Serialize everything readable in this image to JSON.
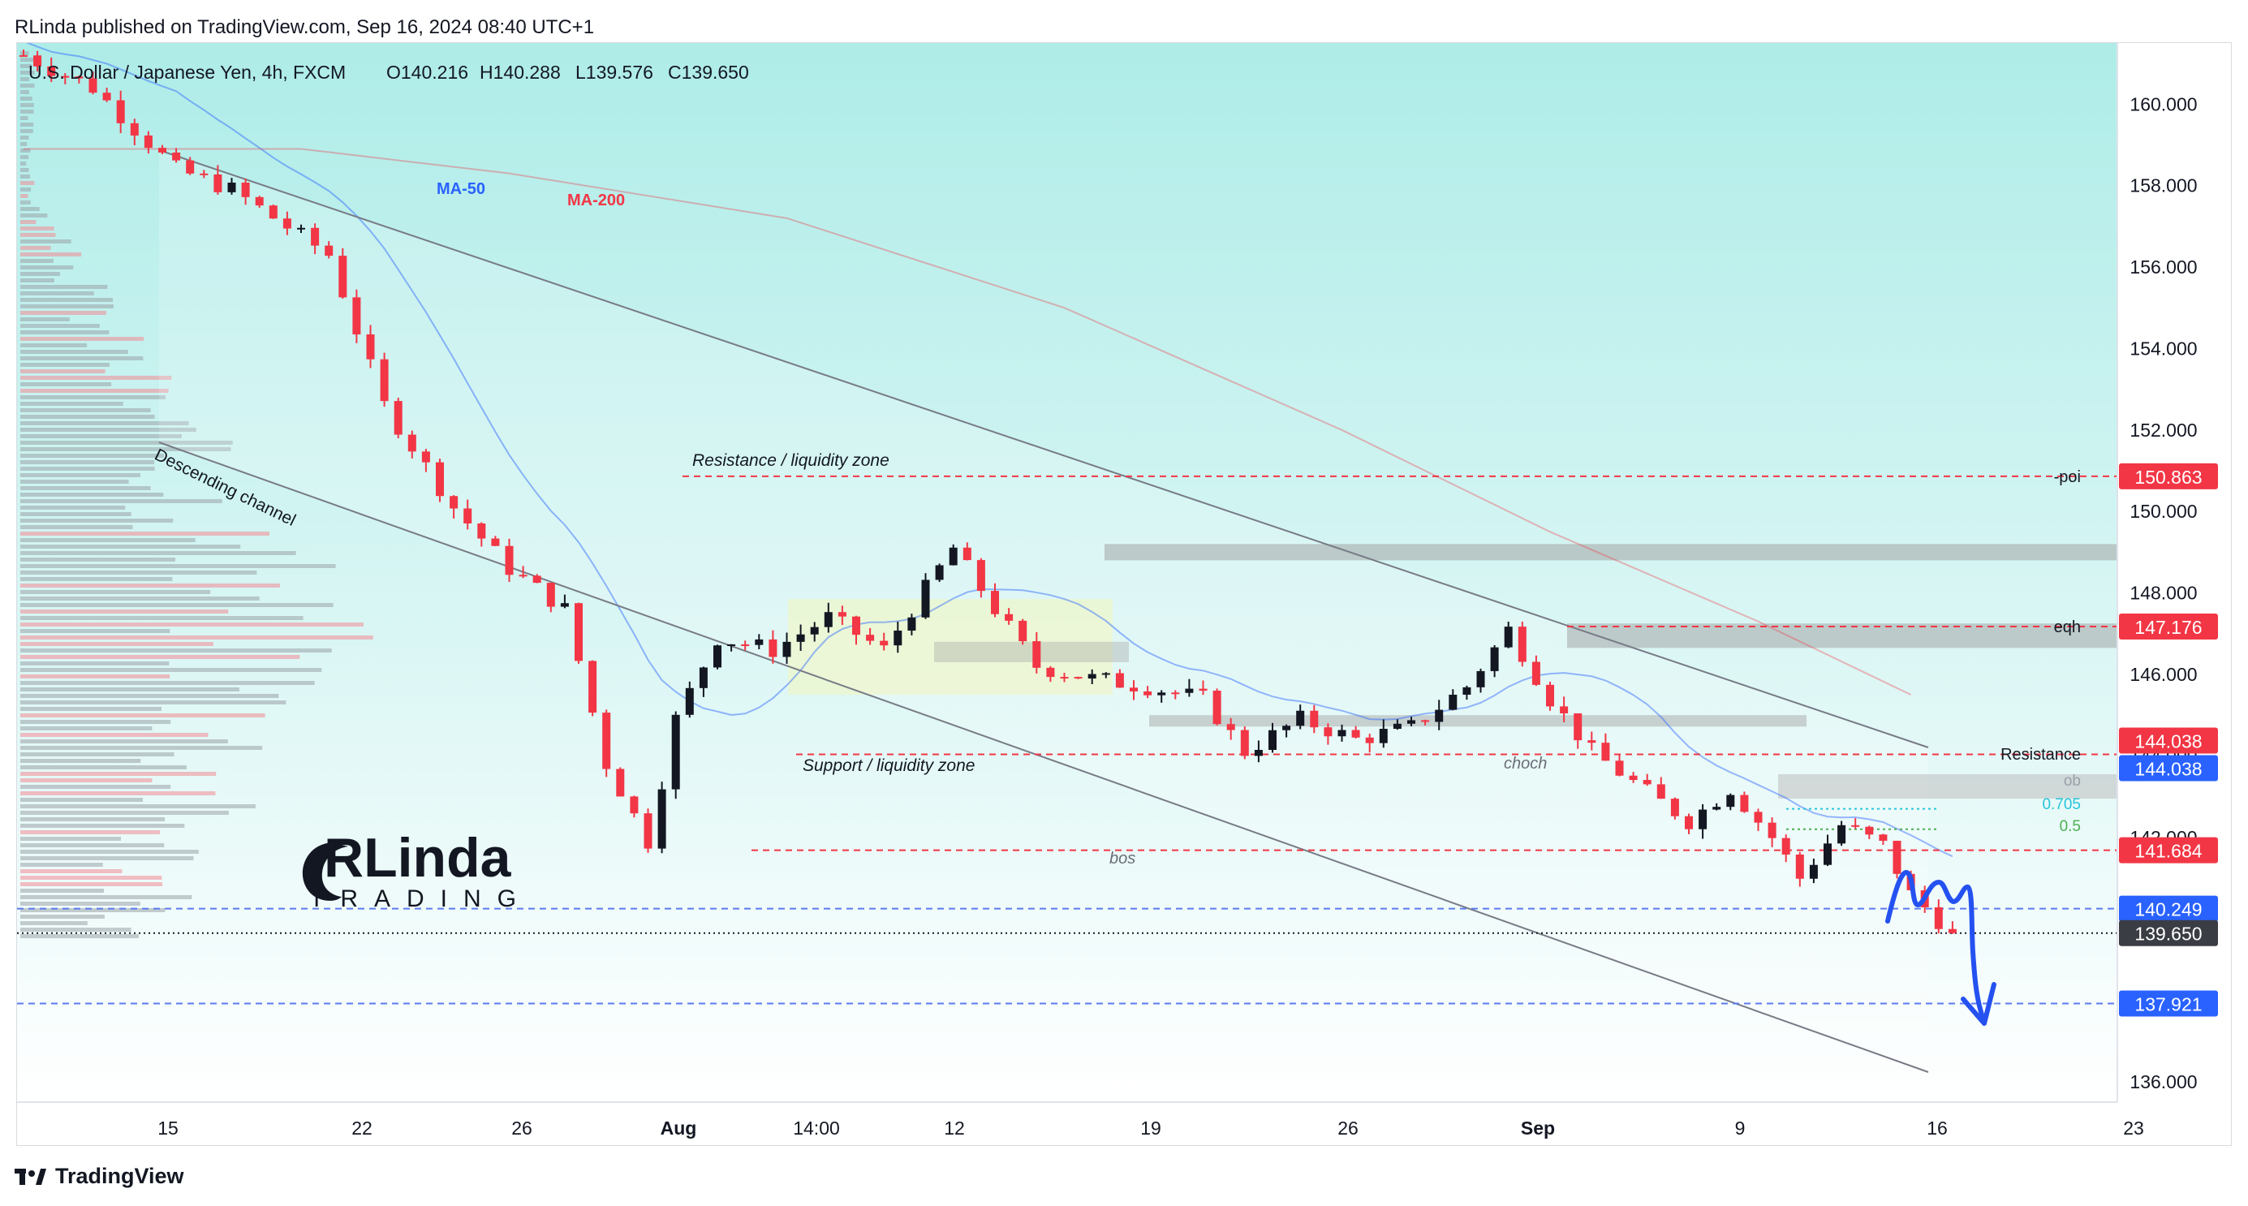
{
  "header": {
    "publisher": "RLinda published on TradingView.com, Sep 16, 2024 08:40 UTC+1"
  },
  "legend": {
    "symbol": "U.S. Dollar / Japanese Yen, 4h, FXCM",
    "open": "O140.216",
    "high": "H140.288",
    "low": "L139.576",
    "close": "C139.650"
  },
  "footer": {
    "brand": "TradingView"
  },
  "watermark": {
    "line1": "RLinda",
    "line2": "TRADING"
  },
  "colors": {
    "up": "#131722",
    "down": "#f23645",
    "ma50": "#2962ff",
    "ma200": "#f23645",
    "bg_top": "#aeece8",
    "bg_bottom": "#ffffff",
    "hand_arrow": "#2451f0"
  },
  "chart_data": {
    "type": "candlestick",
    "instrument": "U.S. Dollar / Japanese Yen",
    "timeframe": "4h",
    "ylim": [
      135.5,
      161.5
    ],
    "y_ticks": [
      "136.000",
      "142.000",
      "144.000",
      "146.000",
      "148.000",
      "150.000",
      "152.000",
      "154.000",
      "156.000",
      "158.000",
      "160.000"
    ],
    "x_ticks": [
      "15",
      "22",
      "26",
      "Aug",
      "14:00",
      "12",
      "19",
      "26",
      "Sep",
      "9",
      "16",
      "23"
    ],
    "price_labels": [
      {
        "value": 150.863,
        "text": "150.863",
        "style": "red"
      },
      {
        "value": 147.176,
        "text": "147.176",
        "style": "red"
      },
      {
        "value": 144.038,
        "text": "144.038",
        "style": "red"
      },
      {
        "value": 144.038,
        "text": "144.038",
        "style": "blue"
      },
      {
        "value": 141.684,
        "text": "141.684",
        "style": "red"
      },
      {
        "value": 140.249,
        "text": "140.249",
        "style": "blue"
      },
      {
        "value": 139.65,
        "text": "139.650",
        "style": "dark"
      },
      {
        "value": 137.921,
        "text": "137.921",
        "style": "blue"
      }
    ],
    "annotations": {
      "ma50": "MA-50",
      "ma200": "MA-200",
      "channel": "Descending channel",
      "resistance_zone": "Resistance / liquidity zone",
      "support_zone": "Support / liquidity zone",
      "bos": "bos",
      "choch": "choch",
      "poi": "-poi",
      "eqh": "eqh",
      "resistance": "Resistance",
      "ob": "ob",
      "fib_705": "0.705",
      "fib_5": "0.5"
    },
    "path_points": [
      [
        0,
        161.2
      ],
      [
        5,
        160.4
      ],
      [
        11,
        158.4
      ],
      [
        15,
        157.9
      ],
      [
        22,
        156.3
      ],
      [
        26,
        152.6
      ],
      [
        31,
        150.1
      ],
      [
        35,
        148.6
      ],
      [
        39,
        147.6
      ],
      [
        42,
        143.8
      ],
      [
        45,
        141.9
      ],
      [
        47,
        144.9
      ],
      [
        50,
        146.9
      ],
      [
        54,
        146.6
      ],
      [
        58,
        147.4
      ],
      [
        62,
        146.6
      ],
      [
        67,
        149.1
      ],
      [
        70,
        147.6
      ],
      [
        73,
        146.2
      ],
      [
        77,
        145.9
      ],
      [
        81,
        145.7
      ],
      [
        85,
        145.4
      ],
      [
        88,
        144.1
      ],
      [
        92,
        144.9
      ],
      [
        96,
        144.4
      ],
      [
        100,
        144.7
      ],
      [
        104,
        145.7
      ],
      [
        107,
        147.1
      ],
      [
        110,
        145.4
      ],
      [
        113,
        144.1
      ],
      [
        117,
        143.1
      ],
      [
        120,
        142.4
      ],
      [
        123,
        143.2
      ],
      [
        126,
        142.0
      ],
      [
        128,
        141.0
      ],
      [
        131,
        142.3
      ],
      [
        134,
        141.8
      ],
      [
        136,
        140.6
      ],
      [
        139,
        139.65
      ]
    ]
  }
}
